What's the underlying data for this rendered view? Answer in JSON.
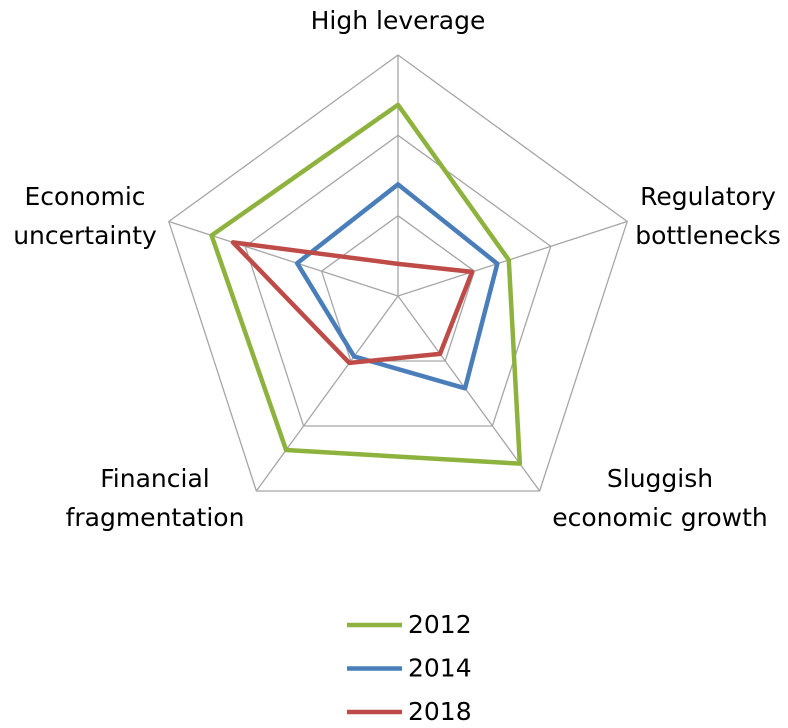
{
  "chart_data": {
    "type": "radar",
    "categories": [
      [
        "High leverage"
      ],
      [
        "Regulatory",
        "bottlenecks"
      ],
      [
        "Sluggish",
        "economic growth"
      ],
      [
        "Financial",
        "fragmentation"
      ],
      [
        "Economic",
        "uncertainty"
      ]
    ],
    "series": [
      {
        "name": "2012",
        "color": "#8db33e",
        "values": [
          2.38,
          1.45,
          2.58,
          2.37,
          2.44
        ]
      },
      {
        "name": "2014",
        "color": "#4a7ebb",
        "values": [
          1.39,
          1.3,
          1.42,
          0.93,
          1.32
        ]
      },
      {
        "name": "2018",
        "color": "#be4b48",
        "values": [
          0.4,
          0.97,
          0.89,
          1.03,
          2.16
        ]
      }
    ],
    "rlim": [
      0,
      3
    ],
    "rticks": [
      1,
      2,
      3
    ],
    "grid": true,
    "legend": "bottom"
  }
}
